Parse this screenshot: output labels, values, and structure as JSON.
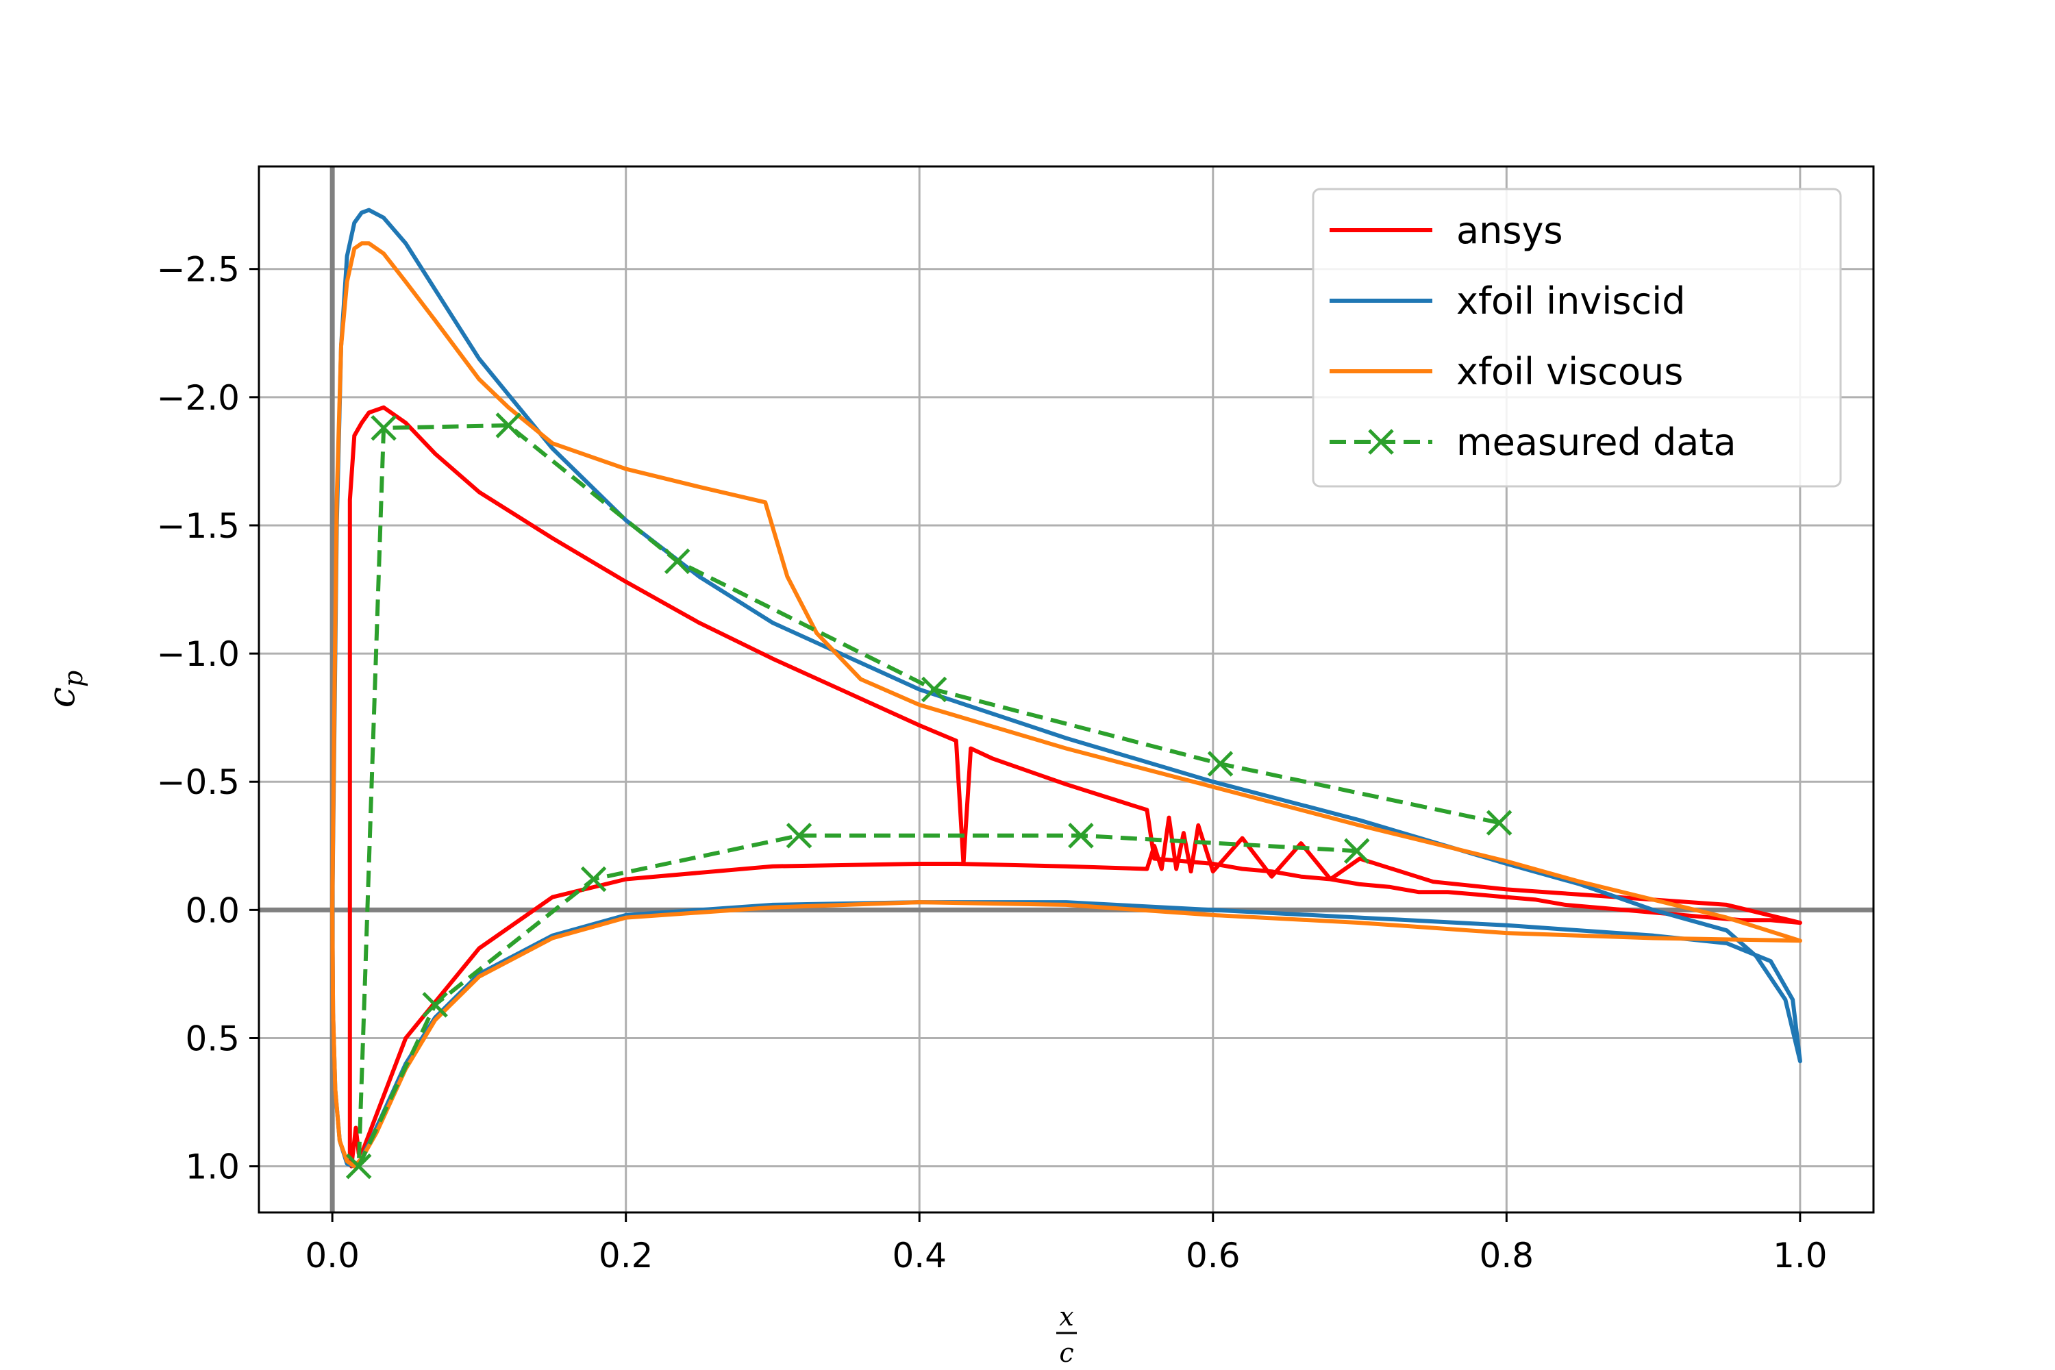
{
  "chart_data": {
    "type": "line",
    "title": "",
    "xlabel": {
      "numerator": "x",
      "denominator": "c"
    },
    "ylabel": {
      "base": "c",
      "subscript": "p"
    },
    "xlim": [
      -0.05,
      1.05
    ],
    "ylim": [
      1.18,
      -2.9
    ],
    "y_inverted": true,
    "grid": true,
    "reference_lines": {
      "x": 0.0,
      "y": 0.0,
      "color": "#808080"
    },
    "xticks": [
      0.0,
      0.2,
      0.4,
      0.6,
      0.8,
      1.0
    ],
    "xtick_labels": [
      "0.0",
      "0.2",
      "0.4",
      "0.6",
      "0.8",
      "1.0"
    ],
    "yticks": [
      -2.5,
      -2.0,
      -1.5,
      -1.0,
      -0.5,
      0.0,
      0.5,
      1.0
    ],
    "ytick_labels": [
      "−2.5",
      "−2.0",
      "−1.5",
      "−1.0",
      "−0.5",
      "0.0",
      "0.5",
      "1.0"
    ],
    "legend_position": "top-right",
    "series": [
      {
        "name": "ansys",
        "color": "#ff0000",
        "style": "solid",
        "x": [
          1.0,
          0.98,
          0.96,
          0.94,
          0.92,
          0.9,
          0.88,
          0.86,
          0.84,
          0.82,
          0.8,
          0.78,
          0.76,
          0.74,
          0.72,
          0.7,
          0.68,
          0.66,
          0.64,
          0.62,
          0.6,
          0.58,
          0.56,
          0.555,
          0.5,
          0.45,
          0.435,
          0.43,
          0.425,
          0.4,
          0.35,
          0.3,
          0.25,
          0.2,
          0.15,
          0.1,
          0.07,
          0.05,
          0.035,
          0.025,
          0.02,
          0.015,
          0.012,
          0.012,
          0.013,
          0.014,
          0.015,
          0.016,
          0.017,
          0.018,
          0.02,
          0.03,
          0.05,
          0.1,
          0.15,
          0.2,
          0.3,
          0.4,
          0.425,
          0.425,
          0.5,
          0.555,
          0.56,
          0.565,
          0.57,
          0.575,
          0.58,
          0.585,
          0.59,
          0.6,
          0.62,
          0.64,
          0.66,
          0.68,
          0.7,
          0.75,
          0.8,
          0.85,
          0.9,
          0.95,
          1.0
        ],
        "y": [
          0.05,
          0.04,
          0.04,
          0.03,
          0.02,
          0.01,
          0.0,
          -0.01,
          -0.02,
          -0.04,
          -0.05,
          -0.06,
          -0.07,
          -0.07,
          -0.09,
          -0.1,
          -0.12,
          -0.13,
          -0.15,
          -0.16,
          -0.18,
          -0.19,
          -0.2,
          -0.39,
          -0.49,
          -0.59,
          -0.63,
          -0.18,
          -0.66,
          -0.72,
          -0.85,
          -0.98,
          -1.12,
          -1.28,
          -1.45,
          -1.63,
          -1.78,
          -1.9,
          -1.96,
          -1.94,
          -1.9,
          -1.85,
          -1.6,
          0.95,
          1.0,
          0.95,
          0.9,
          0.85,
          0.9,
          0.95,
          0.95,
          0.8,
          0.5,
          0.15,
          -0.05,
          -0.12,
          -0.17,
          -0.18,
          -0.18,
          -0.18,
          -0.17,
          -0.16,
          -0.25,
          -0.16,
          -0.36,
          -0.16,
          -0.3,
          -0.15,
          -0.33,
          -0.15,
          -0.28,
          -0.13,
          -0.26,
          -0.12,
          -0.2,
          -0.11,
          -0.08,
          -0.06,
          -0.04,
          -0.02,
          0.05
        ]
      },
      {
        "name": "xfoil inviscid",
        "color": "#1f77b4",
        "style": "solid",
        "x": [
          1.0,
          0.99,
          0.97,
          0.95,
          0.9,
          0.85,
          0.8,
          0.7,
          0.6,
          0.5,
          0.4,
          0.3,
          0.25,
          0.2,
          0.15,
          0.1,
          0.07,
          0.05,
          0.035,
          0.025,
          0.02,
          0.015,
          0.01,
          0.006,
          0.003,
          0.001,
          0.0,
          0.0005,
          0.002,
          0.005,
          0.01,
          0.015,
          0.02,
          0.03,
          0.05,
          0.07,
          0.1,
          0.15,
          0.2,
          0.3,
          0.4,
          0.5,
          0.6,
          0.7,
          0.8,
          0.9,
          0.95,
          0.98,
          0.995,
          1.0
        ],
        "y": [
          0.59,
          0.35,
          0.18,
          0.08,
          0.0,
          -0.1,
          -0.18,
          -0.35,
          -0.5,
          -0.67,
          -0.86,
          -1.12,
          -1.3,
          -1.52,
          -1.8,
          -2.15,
          -2.42,
          -2.6,
          -2.7,
          -2.73,
          -2.72,
          -2.68,
          -2.55,
          -2.2,
          -1.5,
          -0.5,
          0.0,
          0.4,
          0.7,
          0.9,
          0.99,
          1.0,
          0.97,
          0.85,
          0.6,
          0.42,
          0.25,
          0.1,
          0.02,
          -0.02,
          -0.03,
          -0.03,
          0.0,
          0.03,
          0.06,
          0.1,
          0.13,
          0.2,
          0.35,
          0.59
        ]
      },
      {
        "name": "xfoil viscous",
        "color": "#ff7f0e",
        "style": "solid",
        "x": [
          1.0,
          0.95,
          0.9,
          0.85,
          0.8,
          0.7,
          0.6,
          0.5,
          0.4,
          0.36,
          0.33,
          0.31,
          0.295,
          0.25,
          0.2,
          0.15,
          0.12,
          0.1,
          0.07,
          0.05,
          0.035,
          0.025,
          0.02,
          0.015,
          0.01,
          0.006,
          0.003,
          0.001,
          0.0,
          0.0005,
          0.002,
          0.005,
          0.01,
          0.015,
          0.02,
          0.03,
          0.05,
          0.07,
          0.1,
          0.15,
          0.2,
          0.3,
          0.4,
          0.5,
          0.6,
          0.7,
          0.8,
          0.9,
          1.0
        ],
        "y": [
          0.12,
          0.03,
          -0.04,
          -0.11,
          -0.19,
          -0.33,
          -0.48,
          -0.63,
          -0.8,
          -0.9,
          -1.08,
          -1.3,
          -1.59,
          -1.65,
          -1.72,
          -1.82,
          -1.96,
          -2.07,
          -2.3,
          -2.45,
          -2.56,
          -2.6,
          -2.6,
          -2.58,
          -2.45,
          -2.2,
          -1.6,
          -0.6,
          0.0,
          0.4,
          0.7,
          0.9,
          0.98,
          1.0,
          0.97,
          0.87,
          0.62,
          0.43,
          0.26,
          0.11,
          0.03,
          -0.01,
          -0.03,
          -0.02,
          0.02,
          0.05,
          0.09,
          0.11,
          0.12
        ]
      },
      {
        "name": "measured data",
        "color": "#2ca02c",
        "style": "dashed",
        "marker": "x",
        "x": [
          0.795,
          0.605,
          0.41,
          0.235,
          0.12,
          0.035,
          0.018,
          0.07,
          0.178,
          0.318,
          0.51,
          0.698
        ],
        "y": [
          -0.34,
          -0.57,
          -0.86,
          -1.36,
          -1.89,
          -1.88,
          1.0,
          0.37,
          -0.12,
          -0.29,
          -0.29,
          -0.23
        ]
      }
    ]
  }
}
